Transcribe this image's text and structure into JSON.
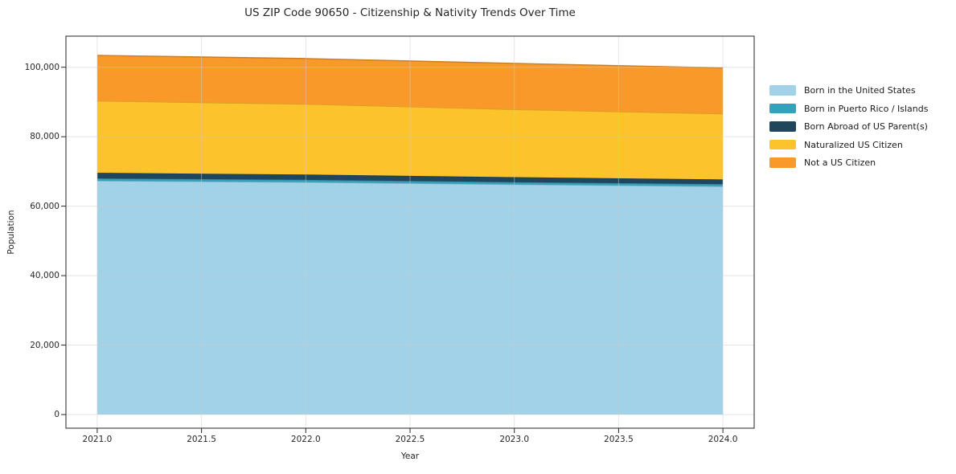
{
  "chart_data": {
    "type": "area",
    "stacked": true,
    "title": "US ZIP Code 90650 - Citizenship & Nativity Trends Over Time",
    "xlabel": "Year",
    "ylabel": "Population",
    "x": [
      2021,
      2022,
      2023,
      2024
    ],
    "series": [
      {
        "name": "Born in the United States",
        "color": "#A2D2E7",
        "values": [
          67300,
          66900,
          66250,
          65700
        ]
      },
      {
        "name": "Born in Puerto Rico / Islands",
        "color": "#35A1BC",
        "values": [
          700,
          690,
          670,
          650
        ]
      },
      {
        "name": "Born Abroad of US Parent(s)",
        "color": "#1F465C",
        "values": [
          1600,
          1510,
          1430,
          1350
        ]
      },
      {
        "name": "Naturalized US Citizen",
        "color": "#FDC32B",
        "values": [
          20700,
          20300,
          19500,
          18900
        ]
      },
      {
        "name": "Not a US Citizen",
        "color": "#F8992A",
        "values": [
          13100,
          13100,
          13250,
          13200
        ]
      }
    ],
    "stack_totals": [
      103400,
      102500,
      101100,
      99800
    ],
    "xlim": [
      2020.85,
      2024.15
    ],
    "ylim": [
      -3930,
      108950
    ],
    "x_ticks": {
      "values": [
        2021.0,
        2021.5,
        2022.0,
        2022.5,
        2023.0,
        2023.5,
        2024.0
      ],
      "labels": [
        "2021.0",
        "2021.5",
        "2022.0",
        "2022.5",
        "2023.0",
        "2023.5",
        "2024.0"
      ]
    },
    "y_ticks": {
      "values": [
        0,
        20000,
        40000,
        60000,
        80000,
        100000
      ],
      "labels": [
        "0",
        "20,000",
        "40,000",
        "60,000",
        "80,000",
        "100,000"
      ]
    },
    "grid": true,
    "grid_color": "#cccccc",
    "spine_color": "#262626",
    "legend_position": "right",
    "legend": [
      "Born in the United States",
      "Born in Puerto Rico / Islands",
      "Born Abroad of US Parent(s)",
      "Naturalized US Citizen",
      "Not a US Citizen"
    ]
  }
}
